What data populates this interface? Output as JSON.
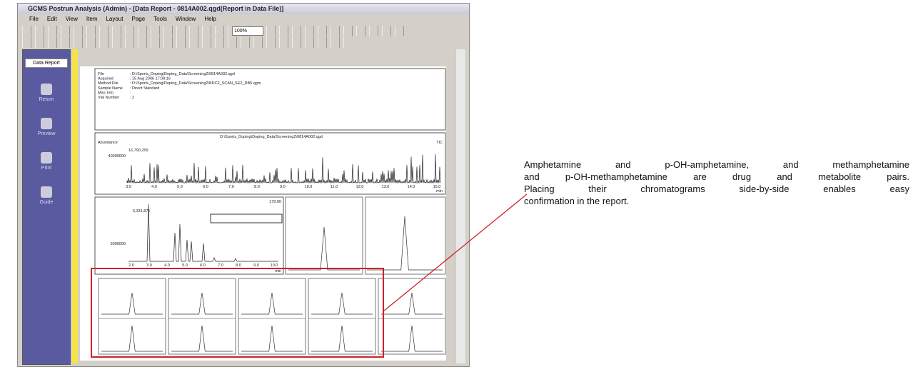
{
  "window": {
    "title": "GCMS Postrun Analysis (Admin) - [Data Report - 0814A002.qgd(Report in Data File)]",
    "menu": [
      "File",
      "Edit",
      "View",
      "Item",
      "Layout",
      "Page",
      "Tools",
      "Window",
      "Help"
    ],
    "zoom": "100%"
  },
  "sidebar": {
    "title": "Data Report",
    "items": [
      "Return",
      "Preview",
      "Print",
      "Guide"
    ]
  },
  "header": {
    "fields": [
      [
        "File",
        ": D:\\Sports_Doping\\Doping_Data\\Screening2\\0814A002.qgd"
      ],
      [
        "Acquired",
        ": 15 Aug 2006 17:09:16"
      ],
      [
        "Method File",
        ": D:\\Sports_Doping\\Doping_Data\\Screening2\\BDC2_SCAN_SE2_DB5.qgm"
      ],
      [
        "Sample Name",
        ": Direct Standard"
      ],
      [
        "Misc Info",
        ":"
      ],
      [
        "Vial Number",
        ": 2"
      ]
    ]
  },
  "tic": {
    "file": "D:\\Sports_Doping\\Doping_Data\\Screening2\\0814A002.qgd",
    "ylabel": "Abundance",
    "tag": "TIC",
    "max": "16,790,259",
    "ytick": "40000000",
    "xticks": [
      "3.0",
      "4.0",
      "5.0",
      "6.0",
      "7.0",
      "8.0",
      "9.0",
      "10.0",
      "11.0",
      "12.0",
      "13.0",
      "14.0",
      "15.0"
    ],
    "unit": "min"
  },
  "sic": {
    "tag": "179.00",
    "max": "6,331,871",
    "ytick": "5000000",
    "xticks": [
      "2.0",
      "3.0",
      "4.0",
      "5.0",
      "6.0",
      "7.0",
      "8.0",
      "9.0",
      "10.0"
    ],
    "unit": "min"
  },
  "annotation": {
    "lines": [
      "Amphetamine and p-OH-amphetamine, and methamphetamine",
      "and p-OH-methamphetamine are drug and metabolite pairs.",
      "Placing their chromatograms side-by-side enables easy",
      "confirmation in the report."
    ]
  }
}
